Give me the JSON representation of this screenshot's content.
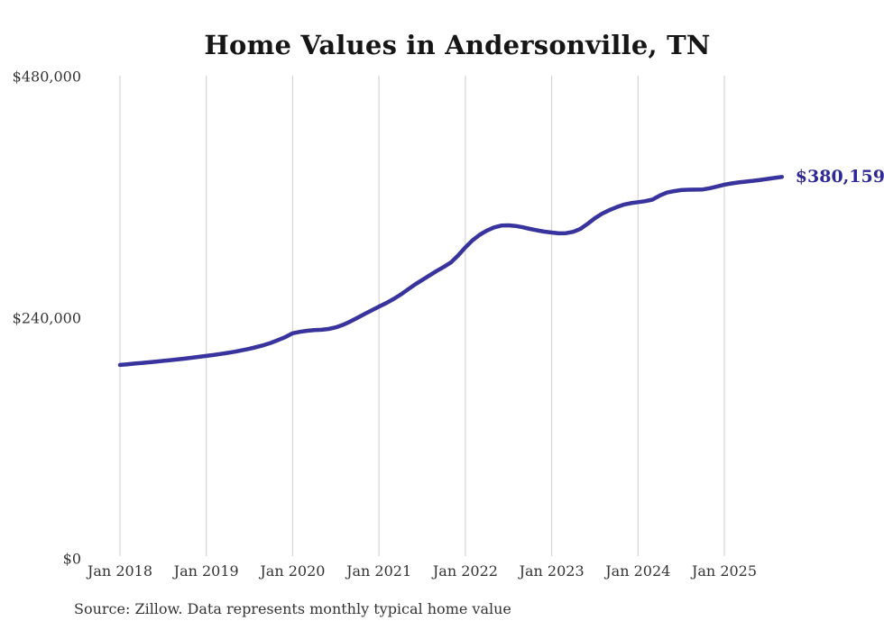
{
  "title": "Home Values in Andersonville, TN",
  "source_note": "Source: Zillow. Data represents monthly typical home value",
  "colors": {
    "line": "#39339e",
    "end_label_text": "#2e2994",
    "gridline": "#cccccc",
    "axis_text": "#333333",
    "title_text": "#161616",
    "background": "#ffffff"
  },
  "chart_data": {
    "type": "line",
    "title": "Home Values in Andersonville, TN",
    "xlabel": "",
    "ylabel": "",
    "ylim": [
      0,
      480000
    ],
    "grid": "vertical-only",
    "legend": "none",
    "x_unit": "month",
    "x_start": "Jan 2018",
    "x_end": "Sep 2025",
    "y_ticks": [
      {
        "label": "$480,000",
        "value": 480000
      },
      {
        "label": "$240,000",
        "value": 240000
      },
      {
        "label": "$0",
        "value": 0
      }
    ],
    "x_ticks": [
      {
        "label": "Jan 2018",
        "month_index": 0
      },
      {
        "label": "Jan 2019",
        "month_index": 12
      },
      {
        "label": "Jan 2020",
        "month_index": 24
      },
      {
        "label": "Jan 2021",
        "month_index": 36
      },
      {
        "label": "Jan 2022",
        "month_index": 48
      },
      {
        "label": "Jan 2023",
        "month_index": 60
      },
      {
        "label": "Jan 2024",
        "month_index": 72
      },
      {
        "label": "Jan 2025",
        "month_index": 84
      }
    ],
    "end_label": {
      "text": "$380,159",
      "value": 380159
    },
    "series": [
      {
        "name": "typical-home-value",
        "values": [
          193000,
          193600,
          194300,
          194900,
          195600,
          196300,
          197000,
          197700,
          198500,
          199300,
          200200,
          201100,
          202000,
          202900,
          203900,
          205000,
          206200,
          207600,
          209100,
          210800,
          212700,
          215000,
          217800,
          220800,
          224500,
          225900,
          227000,
          227600,
          228000,
          228800,
          230400,
          232900,
          236100,
          239900,
          243700,
          247400,
          251000,
          254500,
          258500,
          263000,
          268000,
          273000,
          277500,
          282000,
          286500,
          290500,
          295000,
          302000,
          310000,
          317000,
          322500,
          326800,
          329900,
          331700,
          332000,
          331300,
          330000,
          328400,
          326900,
          325700,
          324800,
          324000,
          324200,
          325500,
          328500,
          333500,
          339000,
          343500,
          347000,
          350000,
          352500,
          354000,
          355000,
          356000,
          357500,
          361500,
          364500,
          366000,
          367000,
          367400,
          367500,
          367700,
          368900,
          370600,
          372400,
          373700,
          374700,
          375500,
          376300,
          377200,
          378200,
          379200,
          380159
        ]
      }
    ]
  }
}
